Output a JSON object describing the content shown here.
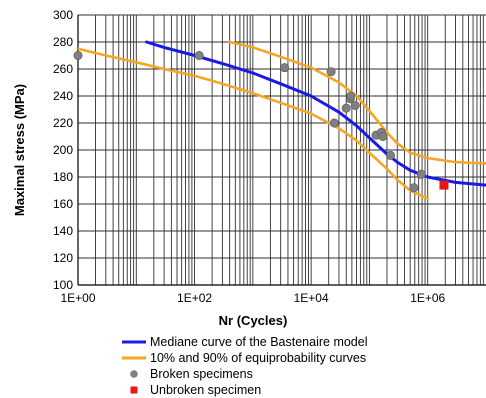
{
  "chart_data": {
    "type": "scatter",
    "title": "",
    "xlabel": "Nr (Cycles)",
    "ylabel": "Maximal stress (MPa)",
    "x_scale": "log",
    "xlim": [
      1,
      10000000
    ],
    "ylim": [
      100,
      300
    ],
    "x_ticks": [
      {
        "value": 1,
        "label": "1E+00"
      },
      {
        "value": 100,
        "label": "1E+02"
      },
      {
        "value": 10000,
        "label": "1E+04"
      },
      {
        "value": 1000000,
        "label": "1E+06"
      }
    ],
    "y_ticks": [
      100,
      120,
      140,
      160,
      180,
      200,
      220,
      240,
      260,
      280,
      300
    ],
    "grid": {
      "x_minor": true,
      "y_major": true
    },
    "legend_position": "bottom",
    "series": [
      {
        "name": "Mediane curve of the Bastenaire model",
        "kind": "line",
        "color": "#1a1ae6",
        "x": [
          15,
          30,
          100,
          300,
          1000,
          3000,
          10000,
          30000,
          60000,
          100000,
          200000,
          300000,
          500000,
          1000000,
          3000000,
          10000000
        ],
        "y": [
          280,
          276,
          270,
          264,
          257,
          249,
          240,
          228,
          218,
          209,
          197,
          191,
          185,
          180,
          176,
          174
        ]
      },
      {
        "name": "10% and 90% of equiprobability curves",
        "kind": "line",
        "color": "#f5a623",
        "x": [
          400,
          1000,
          3000,
          10000,
          30000,
          60000,
          100000,
          200000,
          300000,
          500000,
          1000000,
          3000000,
          10000000
        ],
        "y": [
          280,
          276,
          269,
          261,
          250,
          240,
          229,
          213,
          205,
          198,
          194,
          191,
          190
        ]
      },
      {
        "name": "",
        "kind": "line",
        "color": "#f5a623",
        "x": [
          1,
          3,
          10,
          30,
          100,
          300,
          1000,
          3000,
          10000,
          30000,
          60000,
          100000,
          200000,
          300000,
          500000,
          1000000
        ],
        "y": [
          275,
          270,
          265,
          260,
          255,
          249,
          242,
          235,
          227,
          216,
          207,
          198,
          186,
          178,
          170,
          164
        ]
      },
      {
        "name": "Broken specimens",
        "kind": "points",
        "color": "#808080",
        "x": [
          1,
          120,
          3500,
          22000,
          25000,
          40000,
          47000,
          48000,
          57000,
          130000,
          160000,
          170000,
          230000,
          580000,
          780000
        ],
        "y": [
          270,
          270,
          261,
          258,
          220,
          231,
          238,
          240,
          233,
          211,
          213,
          210,
          196,
          172,
          182
        ]
      },
      {
        "name": "Unbroken specimen",
        "kind": "points",
        "marker": "square",
        "color": "#e8181a",
        "x": [
          1900000
        ],
        "y": [
          174
        ]
      }
    ]
  }
}
